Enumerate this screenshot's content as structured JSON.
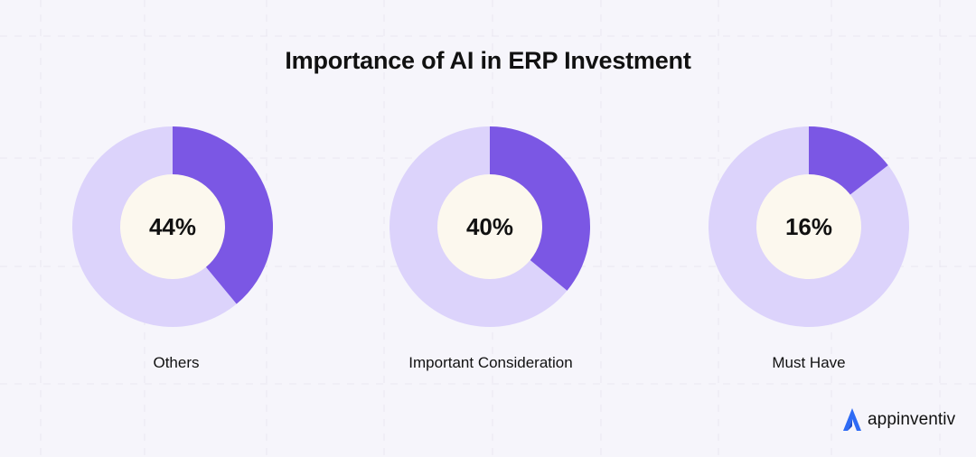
{
  "title": "Importance of AI in ERP Investment",
  "colors": {
    "slice": "#7b57e4",
    "track": "#dcd3fb",
    "center": "#fcf8ee",
    "background": "#f6f5fb"
  },
  "chart_data": [
    {
      "type": "pie",
      "label": "Others",
      "value": 44,
      "value_label": "44%",
      "highlight_fraction": 0.39
    },
    {
      "type": "pie",
      "label": "Important Consideration",
      "value": 40,
      "value_label": "40%",
      "highlight_fraction": 0.36
    },
    {
      "type": "pie",
      "label": "Must Have",
      "value": 16,
      "value_label": "16%",
      "highlight_fraction": 0.145
    }
  ],
  "brand": {
    "name": "appinventiv",
    "icon": "appinventiv-logo-icon"
  }
}
